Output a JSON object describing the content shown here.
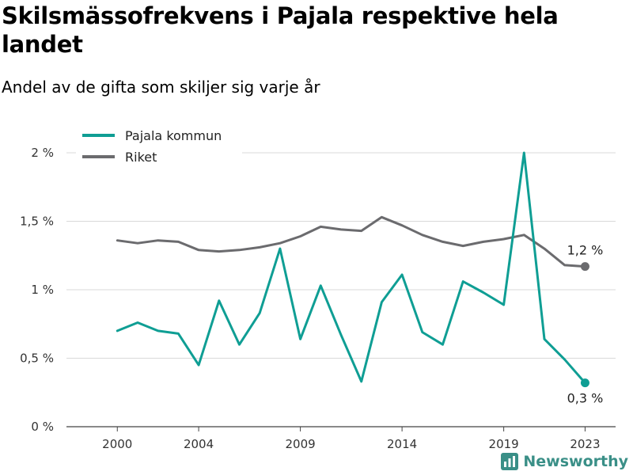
{
  "chart_data": {
    "type": "line",
    "title": "Skilsmässofrekvens i Pajala respektive hela landet",
    "subtitle": "Andel av de gifta som skiljer sig varje år",
    "x": [
      2000,
      2001,
      2002,
      2003,
      2004,
      2005,
      2006,
      2007,
      2008,
      2009,
      2010,
      2011,
      2012,
      2013,
      2014,
      2015,
      2016,
      2017,
      2018,
      2019,
      2020,
      2021,
      2022,
      2023
    ],
    "x_ticks": [
      2000,
      2004,
      2009,
      2014,
      2019,
      2023
    ],
    "y_ticks": [
      0,
      0.5,
      1,
      1.5,
      2
    ],
    "y_tick_labels": [
      "0 %",
      "0,5 %",
      "1 %",
      "1,5 %",
      "2 %"
    ],
    "ylim": [
      0,
      2
    ],
    "grid": true,
    "legend_position": "top-left",
    "series": [
      {
        "name": "Pajala kommun",
        "color": "#0f9e94",
        "values": [
          0.7,
          0.76,
          0.7,
          0.68,
          0.45,
          0.92,
          0.6,
          0.83,
          1.3,
          0.64,
          1.03,
          0.67,
          0.33,
          0.91,
          1.11,
          0.69,
          0.6,
          1.06,
          0.98,
          0.89,
          2.0,
          0.64,
          0.49,
          0.32
        ],
        "end_label": "0,3 %"
      },
      {
        "name": "Riket",
        "color": "#6b6b6e",
        "values": [
          1.36,
          1.34,
          1.36,
          1.35,
          1.29,
          1.28,
          1.29,
          1.31,
          1.34,
          1.39,
          1.46,
          1.44,
          1.43,
          1.53,
          1.47,
          1.4,
          1.35,
          1.32,
          1.35,
          1.37,
          1.4,
          1.3,
          1.18,
          1.17
        ],
        "end_label": "1,2 %"
      }
    ]
  },
  "brand": {
    "name": "Newsworthy",
    "color": "#3a8f87"
  }
}
